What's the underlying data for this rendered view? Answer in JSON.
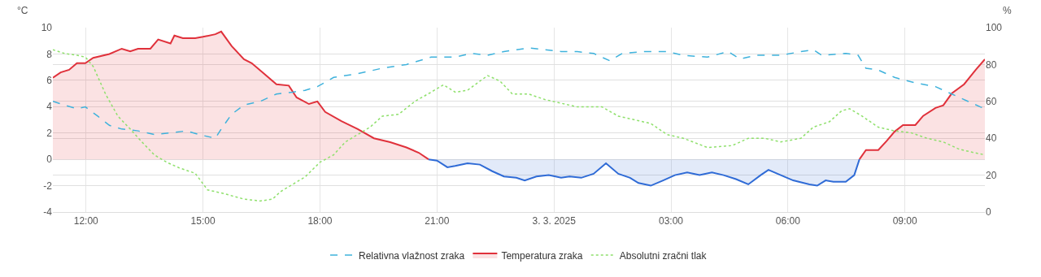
{
  "chart_data": {
    "type": "area",
    "ylabel": "°C",
    "y2label": "%",
    "xlim": [
      "2025-03-02T11:09",
      "2025-03-03T11:03"
    ],
    "xticks": [
      {
        "value": "2025-03-02T12:00",
        "label": "12:00"
      },
      {
        "value": "2025-03-02T15:00",
        "label": "15:00"
      },
      {
        "value": "2025-03-02T18:00",
        "label": "18:00"
      },
      {
        "value": "2025-03-02T21:00",
        "label": "21:00"
      },
      {
        "value": "2025-03-03T00:00",
        "label": "3. 3. 2025"
      },
      {
        "value": "2025-03-03T03:00",
        "label": "03:00"
      },
      {
        "value": "2025-03-03T06:00",
        "label": "06:00"
      },
      {
        "value": "2025-03-03T09:00",
        "label": "09:00"
      }
    ],
    "ylim": [
      -4,
      10
    ],
    "yticks": [
      -4,
      -2,
      0,
      2,
      4,
      6,
      8,
      10
    ],
    "y2lim": [
      0,
      100
    ],
    "y2ticks": [
      0,
      20,
      40,
      60,
      80,
      100
    ],
    "grid": true,
    "legend": "bottom",
    "marker": "none",
    "series": [
      {
        "name": "Relativna vlažnost zraka",
        "type": "line",
        "line_style": "dashed",
        "axis": "y2",
        "color": "#3fb2dc",
        "x": [
          "2025-03-02T11:09",
          "2025-03-02T11:27",
          "2025-03-02T11:46",
          "2025-03-02T11:59",
          "2025-03-02T12:18",
          "2025-03-02T12:36",
          "2025-03-02T12:55",
          "2025-03-02T13:20",
          "2025-03-02T13:45",
          "2025-03-02T14:10",
          "2025-03-02T14:35",
          "2025-03-02T14:54",
          "2025-03-02T15:19",
          "2025-03-02T15:28",
          "2025-03-02T15:44",
          "2025-03-02T16:03",
          "2025-03-02T16:28",
          "2025-03-02T16:53",
          "2025-03-02T17:18",
          "2025-03-02T17:37",
          "2025-03-02T17:56",
          "2025-03-02T18:21",
          "2025-03-02T18:58",
          "2025-03-02T19:36",
          "2025-03-02T20:13",
          "2025-03-02T20:51",
          "2025-03-02T21:28",
          "2025-03-02T21:53",
          "2025-03-02T22:18",
          "2025-03-02T22:43",
          "2025-03-02T23:21",
          "2025-03-02T23:46",
          "2025-03-03T00:11",
          "2025-03-03T00:36",
          "2025-03-03T01:01",
          "2025-03-03T01:26",
          "2025-03-03T01:45",
          "2025-03-03T02:16",
          "2025-03-03T02:54",
          "2025-03-03T03:19",
          "2025-03-03T03:56",
          "2025-03-03T04:28",
          "2025-03-03T04:46",
          "2025-03-03T05:11",
          "2025-03-03T05:49",
          "2025-03-03T06:20",
          "2025-03-03T06:39",
          "2025-03-03T06:52",
          "2025-03-03T07:29",
          "2025-03-03T07:48",
          "2025-03-03T08:00",
          "2025-03-03T08:19",
          "2025-03-03T08:44",
          "2025-03-03T09:16",
          "2025-03-03T09:47",
          "2025-03-03T10:12",
          "2025-03-03T10:37",
          "2025-03-03T10:56",
          "2025-03-03T11:03"
        ],
        "values": [
          60,
          58,
          56,
          57,
          52,
          47,
          45,
          44,
          42,
          43,
          44,
          42,
          40,
          45,
          53,
          58,
          60,
          64,
          65,
          66,
          68,
          73,
          75,
          78,
          80,
          84,
          84,
          86,
          85,
          87,
          89,
          88,
          87,
          87,
          86,
          82,
          86,
          87,
          87,
          85,
          84,
          87,
          83,
          85,
          85,
          87,
          88,
          85,
          86,
          85,
          78,
          77,
          73,
          70,
          68,
          64,
          60,
          57,
          56
        ]
      },
      {
        "name": "Temperatura zraka",
        "color": "#e0313b",
        "x": [
          "2025-03-02T11:09",
          "2025-03-02T11:21",
          "2025-03-02T11:34",
          "2025-03-02T11:46",
          "2025-03-02T11:59",
          "2025-03-02T12:11",
          "2025-03-02T12:36",
          "2025-03-02T12:55",
          "2025-03-02T13:08",
          "2025-03-02T13:20",
          "2025-03-02T13:39",
          "2025-03-02T13:51",
          "2025-03-02T14:10",
          "2025-03-02T14:16",
          "2025-03-02T14:29",
          "2025-03-02T14:48",
          "2025-03-02T15:00",
          "2025-03-02T15:19",
          "2025-03-02T15:28",
          "2025-03-02T15:44",
          "2025-03-02T16:03",
          "2025-03-02T16:15",
          "2025-03-02T16:34",
          "2025-03-02T16:53",
          "2025-03-02T17:12",
          "2025-03-02T17:24",
          "2025-03-02T17:43",
          "2025-03-02T17:56",
          "2025-03-02T18:08",
          "2025-03-02T18:33",
          "2025-03-02T18:58",
          "2025-03-02T19:23",
          "2025-03-02T19:48",
          "2025-03-02T20:13",
          "2025-03-02T20:32",
          "2025-03-02T20:47",
          "2025-03-02T21:00",
          "2025-03-03T07:50",
          "2025-03-03T08:00",
          "2025-03-03T08:19",
          "2025-03-03T08:32",
          "2025-03-03T08:44",
          "2025-03-03T08:57",
          "2025-03-03T09:16",
          "2025-03-03T09:28",
          "2025-03-03T09:47",
          "2025-03-03T09:59",
          "2025-03-03T10:12",
          "2025-03-03T10:31",
          "2025-03-03T10:49",
          "2025-03-03T11:03"
        ],
        "values": [
          6.2,
          6.6,
          6.8,
          7.3,
          7.3,
          7.7,
          8.0,
          8.4,
          8.2,
          8.4,
          8.4,
          9.1,
          8.8,
          9.4,
          9.2,
          9.2,
          9.3,
          9.5,
          9.7,
          8.6,
          7.6,
          7.3,
          6.5,
          5.7,
          5.6,
          4.7,
          4.2,
          4.4,
          3.6,
          2.9,
          2.3,
          1.6,
          1.3,
          0.9,
          0.5,
          0,
          null,
          0,
          0.7,
          0.7,
          1.4,
          2.1,
          2.6,
          2.6,
          3.3,
          3.9,
          4.1,
          5.0,
          5.7,
          6.8,
          7.6
        ]
      },
      {
        "color": "#2f6bd6",
        "x": [
          "2025-03-02T20:47",
          "2025-03-02T21:00",
          "2025-03-02T21:16",
          "2025-03-02T21:28",
          "2025-03-02T21:47",
          "2025-03-02T22:06",
          "2025-03-02T22:25",
          "2025-03-02T22:43",
          "2025-03-02T23:02",
          "2025-03-02T23:15",
          "2025-03-02T23:33",
          "2025-03-02T23:52",
          "2025-03-03T00:11",
          "2025-03-03T00:24",
          "2025-03-03T00:42",
          "2025-03-03T01:01",
          "2025-03-03T01:20",
          "2025-03-03T01:39",
          "2025-03-03T01:57",
          "2025-03-03T02:10",
          "2025-03-03T02:29",
          "2025-03-03T02:48",
          "2025-03-03T03:06",
          "2025-03-03T03:25",
          "2025-03-03T03:44",
          "2025-03-03T04:03",
          "2025-03-03T04:21",
          "2025-03-03T04:40",
          "2025-03-03T04:59",
          "2025-03-03T05:18",
          "2025-03-03T05:30",
          "2025-03-03T05:49",
          "2025-03-03T06:08",
          "2025-03-03T06:33",
          "2025-03-03T06:45",
          "2025-03-03T06:58",
          "2025-03-03T07:10",
          "2025-03-03T07:29",
          "2025-03-03T07:42",
          "2025-03-03T07:50"
        ],
        "values": [
          0,
          -0.1,
          -0.6,
          -0.5,
          -0.3,
          -0.4,
          -0.9,
          -1.3,
          -1.4,
          -1.6,
          -1.3,
          -1.2,
          -1.4,
          -1.3,
          -1.4,
          -1.1,
          -0.3,
          -1.1,
          -1.4,
          -1.8,
          -2.0,
          -1.6,
          -1.2,
          -1.0,
          -1.2,
          -1.0,
          -1.2,
          -1.5,
          -1.9,
          -1.2,
          -0.8,
          -1.2,
          -1.6,
          -1.9,
          -2.0,
          -1.6,
          -1.7,
          -1.7,
          -1.2,
          0
        ]
      },
      {
        "name": "Absolutni zračni tlak",
        "type": "line",
        "line_style": "dotted",
        "axis": "y2",
        "color": "#8fe06c",
        "x": [
          "2025-03-02T11:09",
          "2025-03-02T11:27",
          "2025-03-02T11:46",
          "2025-03-02T11:59",
          "2025-03-02T12:11",
          "2025-03-02T12:30",
          "2025-03-02T12:49",
          "2025-03-02T13:08",
          "2025-03-02T13:26",
          "2025-03-02T13:45",
          "2025-03-02T14:04",
          "2025-03-02T14:23",
          "2025-03-02T14:48",
          "2025-03-02T15:07",
          "2025-03-02T15:32",
          "2025-03-02T16:03",
          "2025-03-02T16:28",
          "2025-03-02T16:47",
          "2025-03-02T16:59",
          "2025-03-02T17:18",
          "2025-03-02T17:37",
          "2025-03-02T18:00",
          "2025-03-02T18:21",
          "2025-03-02T18:39",
          "2025-03-02T18:58",
          "2025-03-02T19:17",
          "2025-03-02T19:36",
          "2025-03-02T20:01",
          "2025-03-02T20:26",
          "2025-03-02T20:51",
          "2025-03-02T21:10",
          "2025-03-02T21:28",
          "2025-03-02T21:47",
          "2025-03-02T22:06",
          "2025-03-02T22:18",
          "2025-03-02T22:37",
          "2025-03-02T22:56",
          "2025-03-02T23:21",
          "2025-03-02T23:46",
          "2025-03-03T00:11",
          "2025-03-03T00:36",
          "2025-03-03T01:14",
          "2025-03-03T01:39",
          "2025-03-03T02:04",
          "2025-03-03T02:29",
          "2025-03-03T02:54",
          "2025-03-03T03:19",
          "2025-03-03T03:56",
          "2025-03-03T04:34",
          "2025-03-03T04:59",
          "2025-03-03T05:24",
          "2025-03-03T05:49",
          "2025-03-03T06:20",
          "2025-03-03T06:39",
          "2025-03-03T07:04",
          "2025-03-03T07:23",
          "2025-03-03T07:35",
          "2025-03-03T07:54",
          "2025-03-03T08:19",
          "2025-03-03T08:44",
          "2025-03-03T09:09",
          "2025-03-03T09:34",
          "2025-03-03T09:59",
          "2025-03-03T10:24",
          "2025-03-03T10:49",
          "2025-03-03T11:03"
        ],
        "values": [
          88,
          86,
          85,
          84,
          79,
          64,
          52,
          45,
          38,
          31,
          27,
          24,
          21,
          12,
          10,
          7,
          6,
          7,
          11,
          15,
          19,
          27,
          31,
          38,
          42,
          46,
          52,
          53,
          60,
          65,
          69,
          65,
          66,
          71,
          74,
          71,
          64,
          64,
          61,
          59,
          57,
          57,
          52,
          50,
          48,
          42,
          40,
          35,
          36,
          40,
          40,
          38,
          40,
          46,
          49,
          55,
          56,
          52,
          46,
          44,
          43,
          40,
          38,
          34,
          32,
          31
        ]
      }
    ]
  }
}
